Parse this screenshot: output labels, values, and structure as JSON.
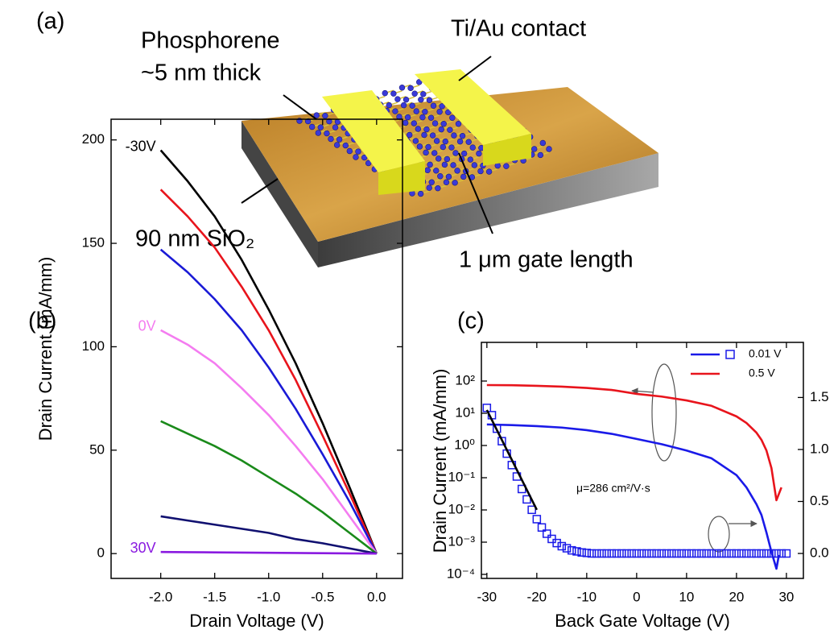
{
  "schematic": {
    "panel_label": "(a)",
    "labels": [
      "Phosphorene",
      "~5 nm thick",
      "Ti/Au contact",
      "90 nm SiO₂",
      "1 μm gate length"
    ]
  },
  "chart_data": [
    {
      "type": "line",
      "panel_label": "(b)",
      "x_label": "Drain Voltage (V)",
      "y_label": "Drain Current (mA/mm)",
      "x": [
        -2.0,
        -1.75,
        -1.5,
        -1.25,
        -1.0,
        -0.75,
        -0.5,
        -0.25,
        0.0
      ],
      "series": [
        {
          "name": "-30V",
          "color": "#000000",
          "values": [
            195,
            180,
            163,
            142,
            118,
            92,
            63,
            32,
            0
          ]
        },
        {
          "color": "#e8141c",
          "values": [
            176,
            163,
            148,
            129,
            108,
            84,
            57,
            29,
            0
          ]
        },
        {
          "color": "#1a1ad6",
          "values": [
            147,
            136,
            123,
            108,
            90,
            70,
            48,
            25,
            0
          ]
        },
        {
          "name": "0V",
          "color": "#f47cf0",
          "values": [
            108,
            101,
            92,
            80,
            67,
            52,
            36,
            18,
            0
          ]
        },
        {
          "color": "#1a8a1a",
          "values": [
            64,
            58,
            52,
            45,
            37,
            29,
            20,
            10,
            0
          ]
        },
        {
          "color": "#101070",
          "values": [
            18,
            16,
            14,
            12,
            10,
            7,
            5,
            2.5,
            0
          ]
        },
        {
          "name": "30V",
          "color": "#8a1ae0",
          "values": [
            0.8,
            0.7,
            0.6,
            0.5,
            0.4,
            0.3,
            0.2,
            0.1,
            0
          ]
        }
      ],
      "xlim": [
        -2.46,
        0.24
      ],
      "ylim": [
        -12,
        210
      ],
      "xticks": [
        {
          "value": -2.0,
          "label": "-2.0"
        },
        {
          "value": -1.5,
          "label": "-1.5"
        },
        {
          "value": -1.0,
          "label": "-1.0"
        },
        {
          "value": -0.5,
          "label": "-0.5"
        },
        {
          "value": 0.0,
          "label": "0.0"
        }
      ],
      "yticks": [
        0,
        50,
        100,
        150,
        200
      ]
    },
    {
      "type": "line",
      "panel_label": "(c)",
      "x_label": "Back Gate Voltage (V)",
      "y_label": "Drain Current (mA/mm)",
      "annotation": "μ=286 cm²/V·s",
      "ylog": true,
      "legend": "upper right",
      "series": [
        {
          "name": "0.01 V",
          "color": "#1a1ae8",
          "x": [
            -30,
            -25,
            -20,
            -15,
            -10,
            -5,
            0,
            5,
            10,
            15,
            20,
            22,
            24,
            25,
            26,
            27,
            28,
            28.5
          ],
          "values": [
            4.5,
            4.3,
            4.0,
            3.6,
            3.0,
            2.3,
            1.6,
            1.1,
            0.7,
            0.4,
            0.12,
            0.05,
            0.015,
            0.007,
            0.002,
            0.0005,
            0.00015,
            0.0004
          ]
        },
        {
          "name": "0.5 V",
          "color": "#e8141c",
          "x": [
            -30,
            -25,
            -20,
            -15,
            -10,
            -5,
            0,
            5,
            10,
            15,
            20,
            22,
            24,
            25,
            26,
            27,
            28,
            29
          ],
          "values": [
            75,
            74,
            71,
            67,
            61,
            53,
            40,
            33,
            25,
            17,
            8,
            5,
            2.5,
            1.5,
            0.7,
            0.2,
            0.02,
            0.05
          ]
        },
        {
          "color": "#1a1ae8",
          "marker": "square",
          "axis": "y2",
          "x": [
            -30,
            -29,
            -28,
            -27,
            -26,
            -25,
            -24,
            -23,
            -22,
            -21,
            -20,
            -19,
            -18,
            -17,
            -16,
            -15,
            -14,
            -13,
            -12,
            -11,
            -10,
            -9,
            -8,
            -7,
            -6,
            -5,
            -4,
            -3,
            -2,
            -1,
            0,
            1,
            2,
            3,
            4,
            5,
            6,
            7,
            8,
            9,
            10,
            11,
            12,
            13,
            14,
            15,
            16,
            17,
            18,
            19,
            20,
            21,
            22,
            23,
            24,
            25,
            26,
            27,
            28,
            29,
            30
          ],
          "values": [
            1.4,
            1.33,
            1.2,
            1.08,
            0.96,
            0.85,
            0.74,
            0.62,
            0.52,
            0.42,
            0.33,
            0.25,
            0.19,
            0.14,
            0.1,
            0.07,
            0.05,
            0.03,
            0.02,
            0.01,
            0.005,
            0,
            0,
            0,
            0,
            0,
            0,
            0,
            0,
            0,
            0,
            0,
            0,
            0,
            0,
            0,
            0,
            0,
            0,
            0,
            0,
            0,
            0,
            0,
            0,
            0,
            0,
            0,
            0,
            0,
            0,
            0,
            0,
            0,
            0,
            0,
            0,
            0,
            0,
            0,
            0
          ]
        },
        {
          "color": "#000000",
          "axis": "y2",
          "x": [
            -30,
            -20
          ],
          "values": [
            1.38,
            0.42
          ]
        }
      ],
      "xlim": [
        -31.1,
        33.4
      ],
      "ylim": [
        7.5e-05,
        1585
      ],
      "y2lim": [
        -0.24,
        2.03
      ],
      "xticks": [
        -30,
        -20,
        -10,
        0,
        10,
        20,
        30
      ],
      "yticks": [
        {
          "value": 0.0001,
          "label": "10⁻⁴"
        },
        {
          "value": 0.001,
          "label": "10⁻³"
        },
        {
          "value": 0.01,
          "label": "10⁻²"
        },
        {
          "value": 0.1,
          "label": "10⁻¹"
        },
        {
          "value": 1,
          "label": "10⁰"
        },
        {
          "value": 10,
          "label": "10¹"
        },
        {
          "value": 100,
          "label": "10²"
        }
      ],
      "y2ticks": [
        {
          "value": 0.0,
          "label": "0.0"
        },
        {
          "value": 0.5,
          "label": "0.5"
        },
        {
          "value": 1.0,
          "label": "1.0"
        },
        {
          "value": 1.5,
          "label": "1.5"
        }
      ]
    }
  ]
}
